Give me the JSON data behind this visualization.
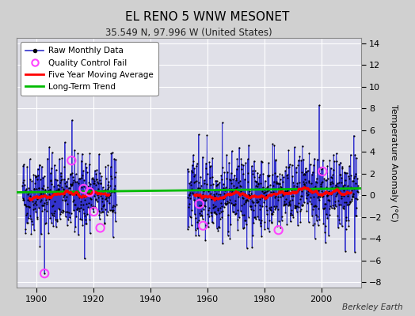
{
  "title": "EL RENO 5 WNW MESONET",
  "subtitle": "35.549 N, 97.996 W (United States)",
  "ylabel": "Temperature Anomaly (°C)",
  "credit": "Berkeley Earth",
  "xlim": [
    1893,
    2014
  ],
  "ylim": [
    -8.5,
    14.5
  ],
  "yticks": [
    -8,
    -6,
    -4,
    -2,
    0,
    2,
    4,
    6,
    8,
    10,
    12,
    14
  ],
  "xticks": [
    1900,
    1920,
    1940,
    1960,
    1980,
    2000
  ],
  "bg_color": "#d0d0d0",
  "plot_bg_color": "#e0e0e8",
  "grid_color": "#ffffff",
  "raw_line_color": "#3333cc",
  "raw_dot_color": "#000000",
  "stem_color": "#aaaaee",
  "qc_fail_color": "#ff44ff",
  "moving_avg_color": "#ff0000",
  "trend_color": "#00bb00",
  "trend_slope": 0.003,
  "trend_intercept": 0.28,
  "seed": 42,
  "seg1_start": 1895,
  "seg1_end": 1927,
  "seg2_start": 1953,
  "seg2_end": 2012
}
